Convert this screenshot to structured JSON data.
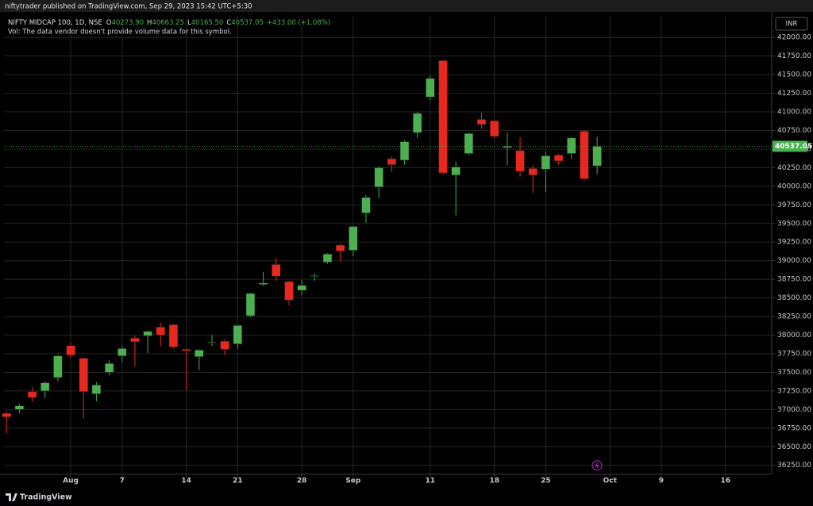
{
  "chart_data": {
    "type": "candlestick",
    "header": "niftytrader published on TradingView.com, Sep 29, 2023 15:42 UTC+5:30",
    "symbol_title": "NIFTY MIDCAP 100, 1D, NSE",
    "ohlc_legend": [
      {
        "prefix": "O",
        "label": "40273.90"
      },
      {
        "prefix": "H",
        "label": "40663.25"
      },
      {
        "prefix": "L",
        "label": "40165.50"
      },
      {
        "prefix": "C",
        "label": "40537.05"
      }
    ],
    "change_label": "+433.00 (+1.08%)",
    "volume_note": "Vol: The data vendor doesn't provide volume data for this symbol.",
    "currency": "INR",
    "last_price": 40537.05,
    "last_price_label": "40537.05",
    "footer": "TradingView",
    "up_color": "#4caf50",
    "down_color": "#e8281f",
    "grid": true,
    "x": [
      0,
      1,
      2,
      3,
      4,
      5,
      6,
      7,
      8,
      9,
      10,
      11,
      12,
      13,
      14,
      15,
      16,
      17,
      18,
      19,
      20,
      21,
      22,
      23,
      24,
      25,
      26,
      27,
      28,
      29,
      30,
      31,
      32,
      33,
      34,
      35,
      36,
      37,
      38,
      39,
      40,
      41,
      42,
      43,
      44,
      45,
      46
    ],
    "open": [
      36950,
      37000,
      37240,
      37250,
      37430,
      37860,
      37690,
      37210,
      37500,
      37720,
      37960,
      37990,
      38110,
      38140,
      37810,
      37710,
      37900,
      37920,
      37880,
      38260,
      38680,
      38950,
      38720,
      38600,
      38790,
      38980,
      39210,
      39140,
      39640,
      39990,
      40370,
      40350,
      40720,
      41200,
      41690,
      40150,
      40440,
      40900,
      40880,
      40520,
      40480,
      40240,
      40230,
      40420,
      40440,
      40740,
      40273.9
    ],
    "high": [
      36980,
      37080,
      37300,
      37380,
      37740,
      37900,
      37700,
      37370,
      37660,
      37850,
      37990,
      38060,
      38170,
      38150,
      37820,
      37810,
      38000,
      37950,
      38140,
      38570,
      38850,
      39040,
      38730,
      38740,
      38830,
      39100,
      39230,
      39470,
      39880,
      40270,
      40400,
      40620,
      41000,
      41480,
      41690,
      40330,
      40720,
      40990,
      40890,
      40720,
      40660,
      40280,
      40460,
      40440,
      40660,
      40760,
      40663.25
    ],
    "low": [
      36680,
      36950,
      37100,
      37150,
      37380,
      37690,
      36880,
      37110,
      37460,
      37640,
      37580,
      37760,
      37850,
      37820,
      37260,
      37530,
      37850,
      37730,
      37820,
      38240,
      38660,
      38730,
      38400,
      38540,
      38730,
      38960,
      38990,
      39060,
      39510,
      39840,
      40190,
      40290,
      40650,
      41160,
      40160,
      39610,
      40420,
      40770,
      40650,
      40280,
      40130,
      39910,
      39920,
      40290,
      40370,
      40080,
      40165.5
    ],
    "close": [
      36900,
      37050,
      37160,
      37360,
      37720,
      37730,
      37240,
      37330,
      37620,
      37820,
      37910,
      38050,
      38000,
      37840,
      37790,
      37800,
      37910,
      37810,
      38130,
      38560,
      38700,
      38790,
      38470,
      38670,
      38800,
      39090,
      39130,
      39460,
      39850,
      40250,
      40290,
      40600,
      40980,
      41450,
      40180,
      40260,
      40710,
      40830,
      40670,
      40540,
      40200,
      40150,
      40410,
      40340,
      40650,
      40100,
      40537.05
    ],
    "xlim": [
      -0.2,
      59.6
    ],
    "xticks": [
      {
        "value": 5,
        "label": "Aug"
      },
      {
        "value": 9,
        "label": "7"
      },
      {
        "value": 14,
        "label": "14"
      },
      {
        "value": 18,
        "label": "21"
      },
      {
        "value": 23,
        "label": "28"
      },
      {
        "value": 27,
        "label": "Sep"
      },
      {
        "value": 33,
        "label": "11"
      },
      {
        "value": 38,
        "label": "18"
      },
      {
        "value": 42,
        "label": "25"
      },
      {
        "value": 47,
        "label": "Oct"
      },
      {
        "value": 51,
        "label": "9"
      },
      {
        "value": 56,
        "label": "16"
      }
    ],
    "ylim": [
      36130,
      42290
    ],
    "yticks": [
      {
        "value": 36250,
        "label": "36250.00"
      },
      {
        "value": 36500,
        "label": "36500.00"
      },
      {
        "value": 36750,
        "label": "36750.00"
      },
      {
        "value": 37000,
        "label": "37000.00"
      },
      {
        "value": 37250,
        "label": "37250.00"
      },
      {
        "value": 37500,
        "label": "37500.00"
      },
      {
        "value": 37750,
        "label": "37750.00"
      },
      {
        "value": 38000,
        "label": "38000.00"
      },
      {
        "value": 38250,
        "label": "38250.00"
      },
      {
        "value": 38500,
        "label": "38500.00"
      },
      {
        "value": 38750,
        "label": "38750.00"
      },
      {
        "value": 39000,
        "label": "39000.00"
      },
      {
        "value": 39250,
        "label": "39250.00"
      },
      {
        "value": 39500,
        "label": "39500.00"
      },
      {
        "value": 39750,
        "label": "39750.00"
      },
      {
        "value": 40000,
        "label": "40000.00"
      },
      {
        "value": 40250,
        "label": "40250.00"
      },
      {
        "value": 40500,
        "label": "40500.00"
      },
      {
        "value": 40750,
        "label": "40750.00"
      },
      {
        "value": 41000,
        "label": "41000.00"
      },
      {
        "value": 41250,
        "label": "41250.00"
      },
      {
        "value": 41500,
        "label": "41500.00"
      },
      {
        "value": 41750,
        "label": "41750.00"
      },
      {
        "value": 42000,
        "label": "42000.00"
      }
    ]
  }
}
